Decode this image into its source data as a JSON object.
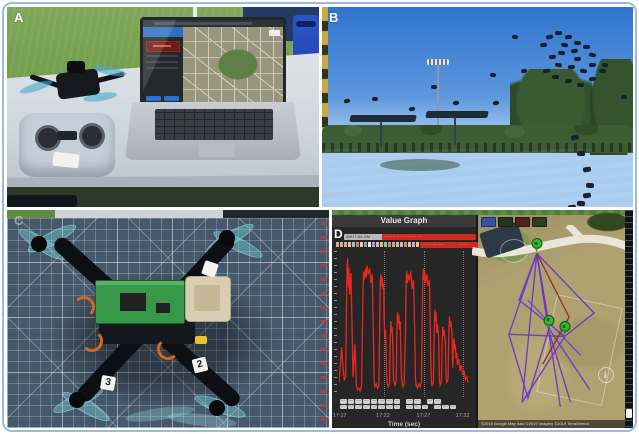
{
  "panels": {
    "a": {
      "label": "A"
    },
    "b": {
      "label": "B"
    },
    "c": {
      "label": "C"
    },
    "d": {
      "label": "D"
    }
  },
  "value_graph": {
    "title": "Value Graph",
    "xlabel": "Time (sec)",
    "device_chip": "AWJT-05-GM",
    "msg_chip_1": "·· ··· ·· ···· ··· ·· ··· ····",
    "msg_chip_2": "·· ···· ··· ·····",
    "msg_chip_3": "··· ···",
    "segment_colors": [
      "#e8a0a8",
      "#d8b078",
      "#c8b890",
      "#e0c8a0",
      "#b0b8c0",
      "#d07878",
      "#e8d0a0",
      "#88a0c0",
      "#e8e8e8",
      "#c890d8",
      "#f0b0b8",
      "#d8c878",
      "#90c8a0",
      "#e09048",
      "#a8a8e0",
      "#e8b868",
      "#c0c0c0",
      "#e87878",
      "#b8d890",
      "#d8a0e0",
      "#e8c890",
      "#cc4444"
    ],
    "legend_rows": [
      [
        [
          "····",
          "····",
          "····",
          "····",
          "····",
          "····",
          "····",
          "····"
        ],
        [
          "····",
          "····"
        ],
        [
          "····",
          "····"
        ]
      ],
      [
        [
          "····",
          "····",
          "····",
          "····",
          "····",
          "····",
          "····",
          "····"
        ],
        [
          "····",
          "····",
          "····"
        ],
        [
          "····",
          "····",
          "····"
        ]
      ]
    ],
    "x_ticks": [
      {
        "label": "17:17",
        "pos": 2
      },
      {
        "label": "17:22",
        "pos": 34
      },
      {
        "label": "17:27",
        "pos": 64
      },
      {
        "label": "17:32",
        "pos": 93
      }
    ]
  },
  "chart_data": {
    "type": "line",
    "title": "Value Graph",
    "xlabel": "Time (sec)",
    "x_tick_labels": [
      "17:17",
      "17:22",
      "17:27",
      "17:32"
    ],
    "ylabel": "",
    "grid": "vertical-dotted",
    "legend_position": "bottom",
    "series": [
      {
        "name": "value",
        "color": "#e8281e",
        "points": [
          [
            0,
            10
          ],
          [
            2,
            34
          ],
          [
            3,
            20
          ],
          [
            4,
            12
          ],
          [
            5,
            14
          ],
          [
            6,
            88
          ],
          [
            6.5,
            95
          ],
          [
            7,
            75
          ],
          [
            7.5,
            88
          ],
          [
            8,
            70
          ],
          [
            9,
            85
          ],
          [
            10,
            40
          ],
          [
            10.5,
            14
          ],
          [
            11,
            20
          ],
          [
            12,
            36
          ],
          [
            12.5,
            24
          ],
          [
            13,
            8
          ],
          [
            14,
            5
          ],
          [
            15,
            6
          ],
          [
            16,
            4
          ],
          [
            17,
            8
          ],
          [
            18,
            70
          ],
          [
            18.5,
            86
          ],
          [
            19,
            80
          ],
          [
            20,
            88
          ],
          [
            20.5,
            82
          ],
          [
            21,
            90
          ],
          [
            22,
            84
          ],
          [
            23,
            88
          ],
          [
            24,
            78
          ],
          [
            25,
            84
          ],
          [
            25.5,
            60
          ],
          [
            26,
            35
          ],
          [
            26.5,
            10
          ],
          [
            27,
            7
          ],
          [
            28,
            9
          ],
          [
            29,
            6
          ],
          [
            30,
            8
          ],
          [
            30.5,
            45
          ],
          [
            31,
            78
          ],
          [
            31.5,
            84
          ],
          [
            32,
            76
          ],
          [
            32.5,
            82
          ],
          [
            33,
            74
          ],
          [
            33.5,
            78
          ],
          [
            34,
            50
          ],
          [
            34.5,
            40
          ],
          [
            35,
            46
          ],
          [
            35.5,
            28
          ],
          [
            36,
            10
          ],
          [
            37,
            7
          ],
          [
            38,
            9
          ],
          [
            38.5,
            38
          ],
          [
            39,
            52
          ],
          [
            39.5,
            44
          ],
          [
            40,
            48
          ],
          [
            40.5,
            34
          ],
          [
            41,
            12
          ],
          [
            42,
            8
          ],
          [
            43,
            10
          ],
          [
            43.5,
            42
          ],
          [
            44,
            58
          ],
          [
            44.5,
            50
          ],
          [
            45,
            56
          ],
          [
            45.5,
            46
          ],
          [
            46,
            52
          ],
          [
            47,
            12
          ],
          [
            48,
            7
          ],
          [
            49,
            9
          ],
          [
            50,
            45
          ],
          [
            50.5,
            80
          ],
          [
            51,
            86
          ],
          [
            51.5,
            78
          ],
          [
            52,
            84
          ],
          [
            53,
            80
          ],
          [
            54,
            86
          ],
          [
            55,
            74
          ],
          [
            56,
            80
          ],
          [
            57,
            42
          ],
          [
            57.5,
            12
          ],
          [
            58,
            8
          ],
          [
            59,
            6
          ],
          [
            60,
            9
          ],
          [
            61,
            7
          ],
          [
            62,
            10
          ],
          [
            62.5,
            50
          ],
          [
            63,
            82
          ],
          [
            63.5,
            88
          ],
          [
            64,
            80
          ],
          [
            64.5,
            86
          ],
          [
            65,
            78
          ],
          [
            66,
            84
          ],
          [
            67,
            76
          ],
          [
            68,
            80
          ],
          [
            68.5,
            55
          ],
          [
            69,
            25
          ],
          [
            69.5,
            10
          ],
          [
            70,
            8
          ],
          [
            71,
            10
          ],
          [
            71.5,
            40
          ],
          [
            72,
            60
          ],
          [
            72.5,
            52
          ],
          [
            73,
            58
          ],
          [
            73.5,
            44
          ],
          [
            74,
            50
          ],
          [
            75,
            40
          ],
          [
            75.5,
            12
          ],
          [
            76,
            8
          ],
          [
            77,
            10
          ],
          [
            77.5,
            35
          ],
          [
            78,
            48
          ],
          [
            78.5,
            42
          ],
          [
            79,
            46
          ],
          [
            80,
            38
          ],
          [
            80.5,
            14
          ],
          [
            81,
            10
          ],
          [
            82,
            12
          ],
          [
            82.5,
            40
          ],
          [
            83,
            55
          ],
          [
            83.5,
            48
          ],
          [
            84,
            52
          ],
          [
            85,
            44
          ],
          [
            85.5,
            20
          ],
          [
            86,
            34
          ],
          [
            86.5,
            40
          ],
          [
            87,
            32
          ],
          [
            87.5,
            36
          ],
          [
            88,
            26
          ],
          [
            88.5,
            30
          ],
          [
            89,
            22
          ],
          [
            90,
            26
          ],
          [
            91,
            18
          ],
          [
            92,
            22
          ],
          [
            93,
            15
          ],
          [
            94,
            18
          ],
          [
            95,
            12
          ],
          [
            96,
            14
          ],
          [
            97,
            10
          ]
        ]
      }
    ],
    "gridline_positions_pct": [
      34,
      64,
      93
    ]
  },
  "map": {
    "attribution": "©2019 Google   Map data ©2019   Imagery ©2019   TerraMetrics",
    "thumbnail_colors": [
      "#3a4fa8",
      "#23351f",
      "#512218",
      "#2c3c22"
    ],
    "pins": [
      [
        40,
        16
      ],
      [
        48,
        52
      ],
      [
        59,
        55
      ]
    ],
    "compass": [
      87,
      75
    ],
    "flight_paths": [
      {
        "c": "#6a35c8",
        "p": [
          [
            40,
            18
          ],
          [
            21,
            56
          ],
          [
            34,
            86
          ],
          [
            48,
            54
          ],
          [
            40,
            18
          ]
        ]
      },
      {
        "c": "#6a35c8",
        "p": [
          [
            40,
            18
          ],
          [
            30,
            88
          ],
          [
            59,
            57
          ]
        ]
      },
      {
        "c": "#6a35c8",
        "p": [
          [
            40,
            18
          ],
          [
            49,
            54
          ],
          [
            76,
            82
          ]
        ]
      },
      {
        "c": "#6a35c8",
        "p": [
          [
            40,
            18
          ],
          [
            79,
            46
          ],
          [
            59,
            57
          ],
          [
            28,
            40
          ],
          [
            40,
            18
          ]
        ]
      },
      {
        "c": "#6a35c8",
        "p": [
          [
            48,
            54
          ],
          [
            63,
            88
          ]
        ]
      },
      {
        "c": "#6a35c8",
        "p": [
          [
            40,
            18
          ],
          [
            56,
            90
          ]
        ]
      },
      {
        "c": "#6a35c8",
        "p": [
          [
            21,
            56
          ],
          [
            59,
            57
          ]
        ]
      },
      {
        "c": "#7a3fd0",
        "p": [
          [
            34,
            40
          ],
          [
            70,
            66
          ]
        ]
      },
      {
        "c": "#8a3020",
        "p": [
          [
            40,
            18
          ],
          [
            62,
            48
          ],
          [
            44,
            70
          ]
        ]
      }
    ]
  },
  "panel_b": {
    "drones": [
      [
        7,
        46
      ],
      [
        16,
        45
      ],
      [
        28,
        50
      ],
      [
        35,
        39
      ],
      [
        42,
        47
      ],
      [
        54,
        33
      ],
      [
        55,
        47
      ],
      [
        61,
        14
      ],
      [
        64,
        31
      ],
      [
        90,
        28
      ],
      [
        96,
        44
      ]
    ],
    "cluster": [
      [
        72,
        14
      ],
      [
        75,
        12
      ],
      [
        78,
        14
      ],
      [
        81,
        17
      ],
      [
        80,
        21
      ],
      [
        76,
        22
      ],
      [
        73,
        24
      ],
      [
        75,
        28
      ],
      [
        79,
        29
      ],
      [
        83,
        31
      ],
      [
        86,
        28
      ],
      [
        86,
        23
      ],
      [
        84,
        19
      ],
      [
        71,
        31
      ],
      [
        74,
        34
      ],
      [
        78,
        36
      ],
      [
        82,
        38
      ],
      [
        86,
        35
      ],
      [
        89,
        31
      ],
      [
        70,
        18
      ],
      [
        77,
        18
      ],
      [
        81,
        25
      ]
    ],
    "trail": [
      [
        80,
        64
      ],
      [
        82,
        72
      ],
      [
        84,
        80
      ],
      [
        85,
        88
      ],
      [
        84,
        93
      ],
      [
        82,
        97
      ],
      [
        79,
        99
      ]
    ]
  },
  "panel_c": {
    "stickers": {
      "arm_right": "2",
      "arm_left": "3",
      "arm_top": ""
    }
  },
  "colors": {
    "frame_border": "#9bbadf",
    "chart_line_red": "#e8281e",
    "flight_path_purple": "#6a35c8",
    "pin_green": "#35b335",
    "cutting_mat_blue": "#46586c",
    "sky_blue": "#2f74cf",
    "field_green": "#6aa746",
    "case_blue": "#2d55c8"
  }
}
